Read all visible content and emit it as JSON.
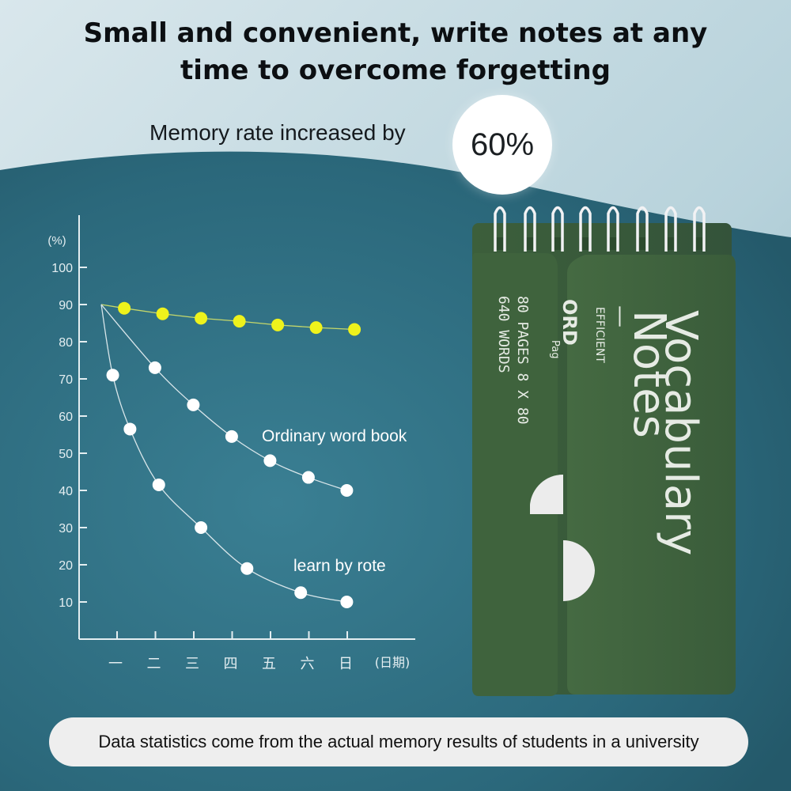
{
  "headline": {
    "line1": "Small and convenient, write notes at any",
    "line2": "time to overcome forgetting"
  },
  "memory": {
    "label": "Memory rate increased by",
    "value": "60%"
  },
  "footer": {
    "note": "Data statistics come from the actual memory results of students in a university"
  },
  "notebook": {
    "title_line1": "Vocabulary",
    "title_line2": "Notes",
    "dash": "—",
    "tag": "EFFICIENT",
    "spec_line1": "80 PAGES  8 X 80",
    "spec_line2": "640 WORDS",
    "back_fragment1": "ORD",
    "back_fragment2": "Pag",
    "color": "#3b5e3a"
  },
  "colors": {
    "background": "#2f7185",
    "accent_series": "#eef21c",
    "white_series": "#ffffff"
  },
  "chart_data": {
    "type": "line",
    "y_unit_label": "(%)",
    "x_unit_label": "(日期)",
    "categories": [
      "一",
      "二",
      "三",
      "四",
      "五",
      "六",
      "日"
    ],
    "yticks": [
      10,
      20,
      30,
      40,
      50,
      60,
      70,
      80,
      90,
      100
    ],
    "ylim": [
      0,
      100
    ],
    "grid": false,
    "start_value": 90,
    "annotations": [
      {
        "text": "Ordinary word book"
      },
      {
        "text": "learn by rote"
      }
    ],
    "series": [
      {
        "key": "notebook",
        "color": "#eef21c",
        "points": [
          [
            0.6,
            89
          ],
          [
            1.6,
            87.5
          ],
          [
            2.6,
            86.3
          ],
          [
            3.6,
            85.5
          ],
          [
            4.6,
            84.5
          ],
          [
            5.6,
            83.8
          ],
          [
            6.6,
            83.3
          ]
        ]
      },
      {
        "key": "ordinary",
        "color": "#ffffff",
        "points": [
          [
            1.4,
            73
          ],
          [
            2.4,
            63
          ],
          [
            3.4,
            54.5
          ],
          [
            4.4,
            48
          ],
          [
            5.4,
            43.5
          ],
          [
            6.4,
            40
          ]
        ]
      },
      {
        "key": "rote",
        "color": "#ffffff",
        "points": [
          [
            0.3,
            71
          ],
          [
            0.75,
            56.5
          ],
          [
            1.5,
            41.5
          ],
          [
            2.6,
            30
          ],
          [
            3.8,
            19
          ],
          [
            5.2,
            12.5
          ],
          [
            6.4,
            10
          ]
        ]
      }
    ]
  }
}
